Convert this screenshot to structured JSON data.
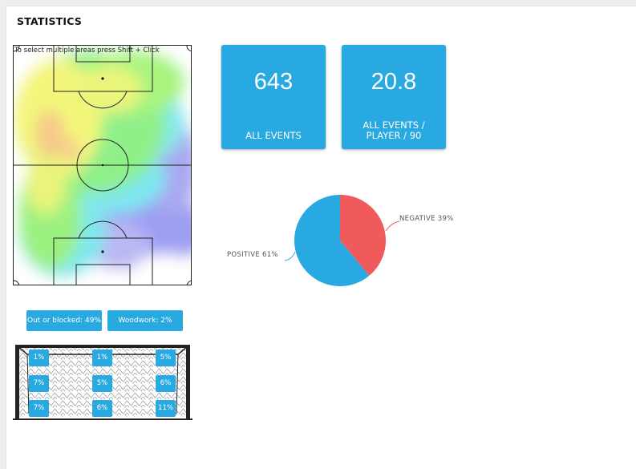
{
  "page": {
    "title": "STATISTICS"
  },
  "heatmap": {
    "hint": "To select multiple areas press Shift + Click"
  },
  "stats": [
    {
      "value": "643",
      "label": "ALL EVENTS"
    },
    {
      "value": "20.8",
      "label": "ALL EVENTS / PLAYER / 90"
    }
  ],
  "pie": {
    "positive_label": "POSITIVE 61%",
    "negative_label": "NEGATIVE 39%",
    "colors": {
      "positive": "#29a9e1",
      "negative": "#f05a5b"
    }
  },
  "chart_data": {
    "type": "pie",
    "categories": [
      "POSITIVE",
      "NEGATIVE"
    ],
    "values": [
      61,
      39
    ]
  },
  "shots": {
    "out_label": "Out or blocked: 49%",
    "woodwork_label": "Woodwork: 2%"
  },
  "goal_zones": {
    "top_left": "1%",
    "top_center": "1%",
    "top_right": "5%",
    "mid_left": "7%",
    "mid_center": "5%",
    "mid_right": "6%",
    "bottom_left": "7%",
    "bottom_center": "6%",
    "bottom_right": "11%"
  },
  "colors": {
    "accent": "#29a9e1"
  }
}
